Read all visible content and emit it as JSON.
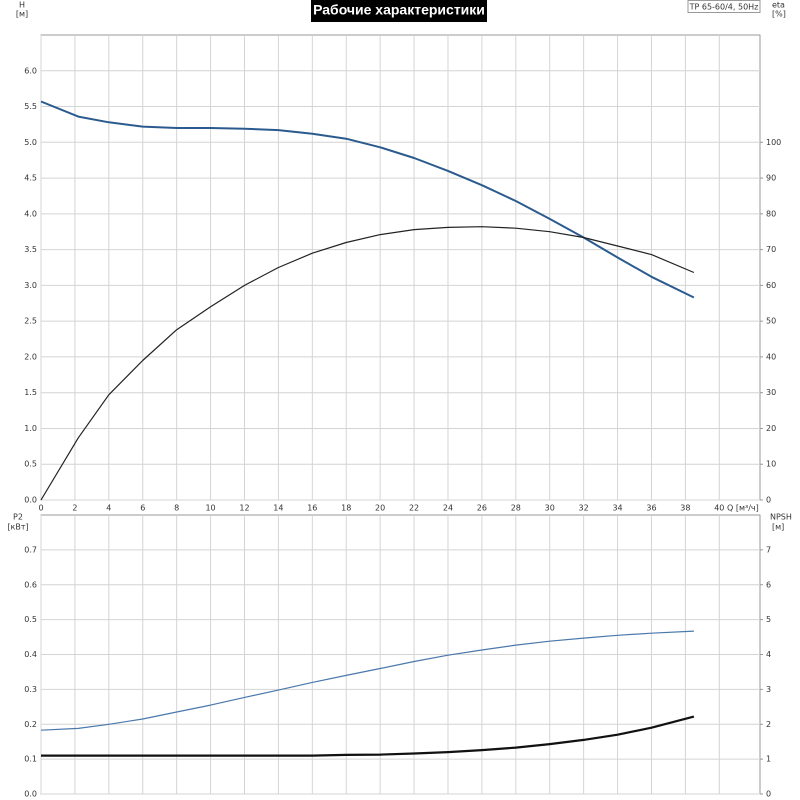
{
  "chart_data": [
    {
      "type": "line",
      "title": "Рабочие характеристики",
      "subtitle": "TP 65-60/4, 50Hz",
      "y_label": "H",
      "y_unit": "[м]",
      "y2_label": "eta",
      "y2_unit": "[%]",
      "x_label": "Q [м³/ч]",
      "x": [
        0,
        2.2,
        4,
        6,
        8,
        10,
        12,
        14,
        16,
        18,
        20,
        22,
        24,
        26,
        28,
        30,
        32,
        34,
        36,
        38.5
      ],
      "series": [
        {
          "color": "#2b5b8e",
          "values": [
            5.57,
            5.36,
            5.28,
            5.22,
            5.2,
            5.2,
            5.19,
            5.17,
            5.12,
            5.05,
            4.93,
            4.78,
            4.6,
            4.4,
            4.18,
            3.93,
            3.67,
            3.39,
            3.12,
            2.83
          ]
        },
        {
          "color": "#222222",
          "axis": "y2",
          "values": [
            0,
            17.4,
            29.4,
            39,
            47.6,
            54,
            60,
            65,
            69,
            72,
            74.2,
            75.6,
            76.2,
            76.4,
            76,
            75,
            73.4,
            71,
            68.6,
            63.6
          ]
        }
      ],
      "xlim": [
        0,
        42.4
      ],
      "xticks": [
        0,
        2,
        4,
        6,
        8,
        10,
        12,
        14,
        16,
        18,
        20,
        22,
        24,
        26,
        28,
        30,
        32,
        34,
        36,
        38,
        40
      ],
      "ylim": [
        0,
        6.5
      ],
      "yticks": [
        {
          "value": 0,
          "label": "0.0"
        },
        0.5,
        {
          "value": 1,
          "label": "1.0"
        },
        1.5,
        {
          "value": 2,
          "label": "2.0"
        },
        2.5,
        {
          "value": 3,
          "label": "3.0"
        },
        3.5,
        {
          "value": 4,
          "label": "4.0"
        },
        4.5,
        {
          "value": 5,
          "label": "5.0"
        },
        5.5,
        {
          "value": 6,
          "label": "6.0"
        }
      ],
      "y2lim": [
        0,
        130
      ],
      "y2ticks": [
        0,
        10,
        20,
        30,
        40,
        50,
        60,
        70,
        80,
        90,
        100
      ],
      "grid": true
    },
    {
      "type": "line",
      "y_label": "P2",
      "y_unit": "[кВт]",
      "y2_label": "NPSH",
      "y2_unit": "[м]",
      "x": [
        0,
        2.2,
        4,
        6,
        8,
        10,
        12,
        14,
        16,
        18,
        20,
        22,
        24,
        26,
        28,
        30,
        32,
        34,
        36,
        38.5
      ],
      "series": [
        {
          "color": "#4a78ab",
          "values": [
            0.183,
            0.188,
            0.2,
            0.215,
            0.235,
            0.255,
            0.277,
            0.298,
            0.32,
            0.34,
            0.36,
            0.38,
            0.398,
            0.413,
            0.427,
            0.438,
            0.447,
            0.455,
            0.461,
            0.467
          ]
        },
        {
          "color": "#111111",
          "axis": "y2",
          "values": [
            1.1,
            1.1,
            1.1,
            1.1,
            1.1,
            1.1,
            1.1,
            1.1,
            1.1,
            1.12,
            1.13,
            1.16,
            1.2,
            1.26,
            1.33,
            1.43,
            1.55,
            1.7,
            1.9,
            2.22
          ]
        }
      ],
      "xlim": [
        0,
        42.4
      ],
      "ylim": [
        0,
        0.8
      ],
      "yticks": [
        {
          "value": 0,
          "label": "0.0"
        },
        0.1,
        0.2,
        0.3,
        0.4,
        0.5,
        0.6,
        0.7
      ],
      "y2lim": [
        0,
        8
      ],
      "y2ticks": [
        0,
        1,
        2,
        3,
        4,
        5,
        6,
        7
      ],
      "grid": true
    }
  ]
}
